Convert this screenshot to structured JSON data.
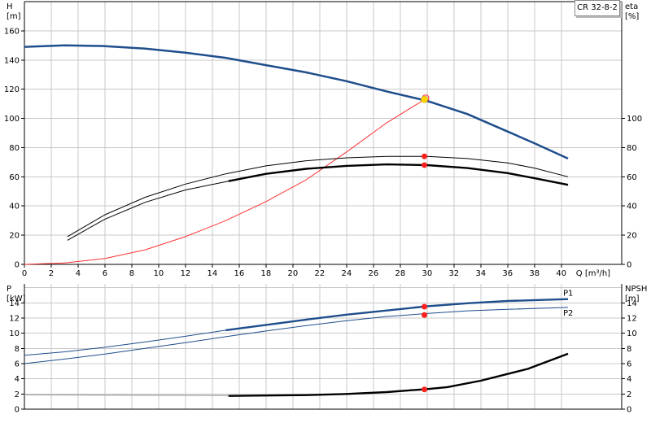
{
  "model_label": "CR 32-8-2",
  "colors": {
    "head_curve": "#1f4e8c",
    "eta_curve": "#ff3333",
    "black_curve": "#000000",
    "power_curve": "#1f4e8c",
    "npsh_curve": "#000000",
    "grid": "#c8c8c8",
    "duty_marker": "#ff2020",
    "duty_head_marker": "#ffd700"
  },
  "chart_data": [
    {
      "type": "line",
      "panel": "top",
      "ylabel_left": [
        "H",
        "[m]"
      ],
      "ylabel_right": [
        "eta",
        "[%]"
      ],
      "xlabel": "Q [m³/h]",
      "x_ticks": [
        "0",
        "2",
        "4",
        "6",
        "8",
        "10",
        "12",
        "14",
        "16",
        "18",
        "20",
        "22",
        "24",
        "26",
        "28",
        "30",
        "32",
        "34",
        "36",
        "38",
        "40"
      ],
      "y_ticks_left": [
        "0",
        "20",
        "40",
        "60",
        "80",
        "100",
        "120",
        "140",
        "160"
      ],
      "y_ticks_right": [
        "0",
        "20",
        "40",
        "60",
        "80",
        "100"
      ],
      "xlim": [
        0,
        44.5
      ],
      "ylim_left": [
        0,
        180
      ],
      "ylim_right": [
        0,
        180
      ],
      "grid": true,
      "series": [
        {
          "key": "head",
          "axis": "left",
          "style": "thick-blue",
          "x": [
            0,
            3,
            6,
            9,
            12,
            15,
            18,
            21,
            24,
            27,
            30,
            33,
            36,
            38,
            40.5
          ],
          "y": [
            149,
            150,
            149.5,
            147.8,
            145,
            141.5,
            136.5,
            131.5,
            125.5,
            118.5,
            112,
            103,
            91,
            83,
            72.5
          ]
        },
        {
          "key": "eta_line",
          "axis": "right",
          "style": "thin-red",
          "x": [
            0,
            3,
            6,
            9,
            12,
            15,
            18,
            21,
            24,
            27,
            30
          ],
          "y": [
            0,
            1,
            4,
            10,
            19,
            30,
            43,
            58,
            77,
            97,
            114
          ]
        },
        {
          "key": "curve_upper",
          "axis": "left",
          "style": "thin-black",
          "x": [
            3.2,
            6,
            9,
            12,
            15,
            18,
            21,
            24,
            27,
            30,
            33,
            36,
            38,
            40.5
          ],
          "y": [
            19,
            34,
            46,
            55,
            62,
            67.5,
            71,
            73,
            74,
            74,
            72.5,
            69.5,
            66,
            60
          ]
        },
        {
          "key": "curve_lower_thin",
          "axis": "left",
          "style": "thin-black",
          "x": [
            3.2,
            6,
            9,
            12,
            15.2
          ],
          "y": [
            16.5,
            31,
            42.5,
            51,
            57
          ]
        },
        {
          "key": "curve_lower_thick",
          "axis": "left",
          "style": "thick-black",
          "x": [
            15.2,
            18,
            21,
            24,
            27,
            30,
            33,
            36,
            38,
            40.5
          ],
          "y": [
            57,
            62,
            65.5,
            67.5,
            68.5,
            68,
            66,
            62.5,
            59,
            54.5
          ]
        }
      ],
      "markers": [
        {
          "x": 29.8,
          "y": 113,
          "kind": "duty-head"
        },
        {
          "x": 29.8,
          "y": 74,
          "kind": "duty"
        },
        {
          "x": 29.8,
          "y": 68,
          "kind": "duty"
        }
      ]
    },
    {
      "type": "line",
      "panel": "bottom",
      "ylabel_left": [
        "P",
        "[kW]"
      ],
      "ylabel_right": [
        "NPSH",
        "[m]"
      ],
      "y_ticks_left": [
        "0",
        "2",
        "4",
        "6",
        "8",
        "10",
        "12",
        "14"
      ],
      "y_ticks_right": [
        "0",
        "2",
        "4",
        "6",
        "8",
        "10",
        "12",
        "14"
      ],
      "ylim_left": [
        0,
        16.5
      ],
      "ylim_right": [
        0,
        16.5
      ],
      "grid": true,
      "series": [
        {
          "key": "p1",
          "name": "P1",
          "axis": "left",
          "style": "thin-blue-then-thick",
          "x": [
            0,
            3,
            6,
            9,
            12,
            15,
            18,
            21,
            24,
            27,
            30,
            33,
            36,
            40.5
          ],
          "y": [
            7.1,
            7.55,
            8.15,
            8.85,
            9.6,
            10.4,
            11.1,
            11.8,
            12.45,
            13.0,
            13.55,
            13.95,
            14.25,
            14.5
          ]
        },
        {
          "key": "p2",
          "name": "P2",
          "axis": "left",
          "style": "thin-blue",
          "x": [
            0,
            3,
            6,
            9,
            12,
            15,
            18,
            21,
            24,
            27,
            30,
            33,
            36,
            40.5
          ],
          "y": [
            6.0,
            6.6,
            7.25,
            8.0,
            8.75,
            9.55,
            10.3,
            11.0,
            11.65,
            12.2,
            12.6,
            12.95,
            13.15,
            13.4
          ]
        },
        {
          "key": "npsh_thin",
          "axis": "right",
          "style": "thin-gray",
          "x": [
            0,
            15.2
          ],
          "y": [
            1.9,
            1.8
          ]
        },
        {
          "key": "npsh",
          "axis": "right",
          "style": "thick-black",
          "x": [
            15.2,
            18,
            21,
            24,
            27,
            30,
            31.5,
            34,
            37.5,
            40.5
          ],
          "y": [
            1.75,
            1.8,
            1.85,
            2.0,
            2.25,
            2.65,
            2.9,
            3.75,
            5.3,
            7.3
          ]
        }
      ],
      "markers": [
        {
          "x": 29.8,
          "y": 13.5,
          "kind": "duty"
        },
        {
          "x": 29.8,
          "y": 12.4,
          "kind": "duty"
        },
        {
          "x": 29.8,
          "y": 2.6,
          "kind": "duty"
        }
      ]
    }
  ]
}
